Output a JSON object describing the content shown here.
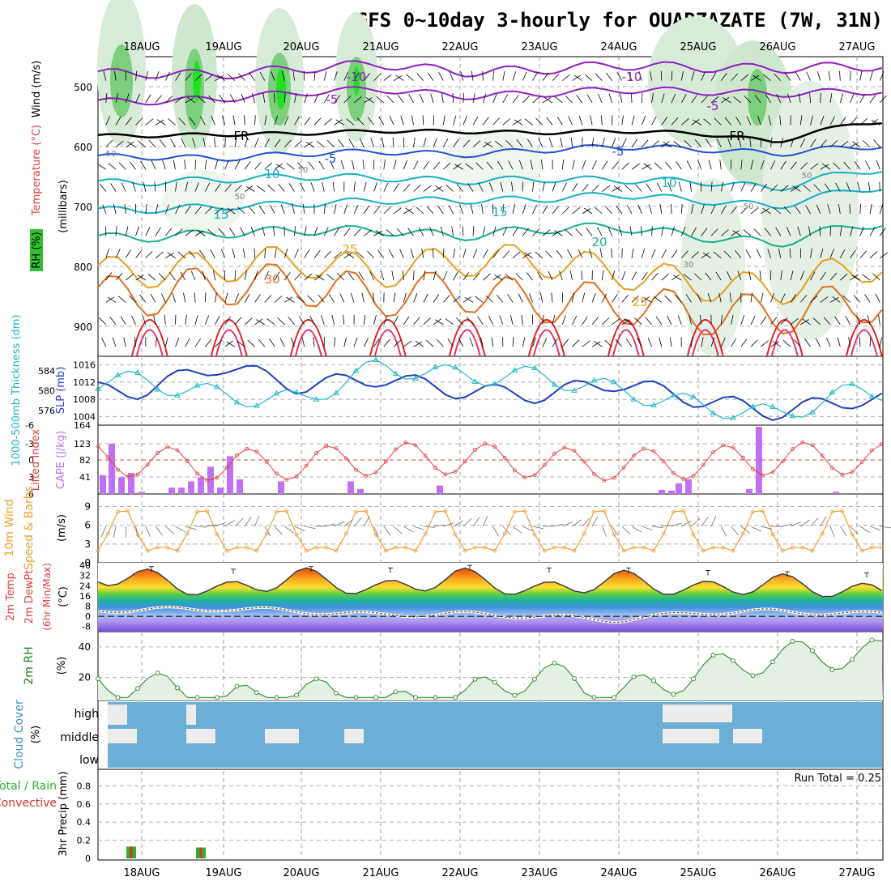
{
  "title": "GFS 0~10day 3-hourly for OUARZAZATE (7W, 31N)",
  "dates": [
    "18AUG",
    "19AUG",
    "20AUG",
    "21AUG",
    "22AUG",
    "23AUG",
    "24AUG",
    "25AUG",
    "26AUG",
    "27AUG"
  ],
  "colors": {
    "temperature_warm": "#e02020",
    "temperature_mid": "#e8a020",
    "temperature_cool": "#18b0c0",
    "temperature_cold": "#2050d0",
    "temperature_freeze": "#9020c0",
    "rh_green": "#22c022",
    "slp": "#2040c0",
    "thickness": "#20b8c8",
    "lifted_index": "#e04040",
    "cape": "#c070f0",
    "wind10m": "#f0a030",
    "rh2m": "#208020",
    "cloud": "#6baed6",
    "precip_total": "#30b030",
    "precip_conv": "#e03030"
  },
  "panels": {
    "upper": {
      "labels": {
        "rh": "RH (%)",
        "temperature": "Temperature (°C)",
        "wind": "Wind (m/s)",
        "pressure": "(millibars)"
      },
      "contour_labels": [
        "-10",
        "-10",
        "-5",
        "-5",
        "FR",
        "FR",
        "-5",
        "-5",
        "10",
        "10",
        "15",
        "15",
        "20",
        "25",
        "25",
        "30"
      ],
      "rh_labels": [
        "50",
        "50",
        "50",
        "50",
        "50",
        "30"
      ]
    },
    "slp": {
      "labels": {
        "thickness": "1000-500mb Thickness (dm)",
        "slp": "SLP (mb)"
      }
    },
    "cape": {
      "labels": {
        "li": "Lifted Index",
        "cape": "CAPE (J/kg)"
      }
    },
    "wind10m": {
      "labels": {
        "main": "10m Wind",
        "sub": "Speed & Barbs",
        "unit": "(m/s)"
      }
    },
    "temp2m": {
      "labels": {
        "a": "2m Temp",
        "b": "2m DewPt",
        "c": "(6hr Min/Max)",
        "unit": "(°C)"
      }
    },
    "rh2m": {
      "labels": {
        "main": "2m RH",
        "unit": "(%)"
      }
    },
    "cloud": {
      "labels": {
        "main": "Cloud Cover",
        "unit": "(%)"
      },
      "levels": [
        "high",
        "middle",
        "low"
      ]
    },
    "precip": {
      "labels": {
        "a": "Total / Rain",
        "b": "Convective",
        "c": "3hr Precip (mm)"
      },
      "run_total": "Run Total = 0.25"
    }
  },
  "chart_data": [
    {
      "type": "line",
      "title": "Temperature (°C) / Wind (m/s) / RH (%)",
      "ylabel": "millibars",
      "ylim": [
        950,
        450
      ],
      "yticks": [
        500,
        600,
        700,
        800,
        900
      ],
      "x": [
        "18AUG",
        "19AUG",
        "20AUG",
        "21AUG",
        "22AUG",
        "23AUG",
        "24AUG",
        "25AUG",
        "26AUG",
        "27AUG"
      ],
      "series": [
        {
          "name": "-10",
          "values": [
            478,
            480,
            470,
            462,
            476,
            472,
            464,
            468,
            470,
            466
          ]
        },
        {
          "name": "-5",
          "values": [
            525,
            520,
            510,
            504,
            516,
            512,
            505,
            508,
            512,
            508
          ]
        },
        {
          "name": "FR",
          "values": [
            582,
            580,
            578,
            574,
            575,
            577,
            574,
            578,
            592,
            560
          ]
        },
        {
          "name": "5",
          "values": [
            617,
            620,
            612,
            608,
            614,
            606,
            600,
            604,
            612,
            600
          ]
        },
        {
          "name": "10",
          "values": [
            660,
            655,
            650,
            652,
            658,
            654,
            656,
            658,
            670,
            640
          ]
        },
        {
          "name": "15",
          "values": [
            706,
            700,
            696,
            690,
            690,
            688,
            680,
            690,
            700,
            670
          ]
        },
        {
          "name": "20",
          "values": [
            752,
            745,
            740,
            740,
            750,
            738,
            734,
            750,
            762,
            730
          ]
        },
        {
          "name": "25",
          "values": [
            810,
            800,
            790,
            810,
            790,
            790,
            810,
            830,
            840,
            800
          ]
        },
        {
          "name": "30",
          "values": [
            850,
            830,
            830,
            850,
            840,
            860,
            860,
            880,
            880,
            860
          ]
        }
      ]
    },
    {
      "type": "line",
      "title": "SLP / Thickness",
      "ylim": [
        1003,
        1017
      ],
      "x": [
        "18AUG",
        "19AUG",
        "20AUG",
        "21AUG",
        "22AUG",
        "23AUG",
        "24AUG",
        "25AUG",
        "26AUG",
        "27AUG"
      ],
      "series": [
        {
          "name": "SLP (mb)",
          "values": [
            1010,
            1016,
            1011,
            1013,
            1010,
            1009,
            1012,
            1008,
            1005,
            1008
          ]
        },
        {
          "name": "Thickness (dm)",
          "values": [
            582,
            579,
            578,
            585,
            583,
            583,
            580,
            577,
            575,
            580
          ]
        }
      ]
    },
    {
      "type": "bar",
      "title": "CAPE (J/kg) / Lifted Index",
      "ylim": [
        0,
        164
      ],
      "x": [
        "17AUG12",
        "17AUG15",
        "17AUG18",
        "17AUG21",
        "18AUG00",
        "18AUG03",
        "18AUG06",
        "18AUG09",
        "18AUG12",
        "18AUG15",
        "18AUG18",
        "18AUG21",
        "19AUG00",
        "19AUG03",
        "20AUG15",
        "21AUG12",
        "21AUG15",
        "22AUG12",
        "24AUG21",
        "24AUG21b",
        "25AUG03",
        "25AUG06",
        "25AUG15",
        "25AUG18",
        "26AUG12"
      ],
      "values": [
        45,
        120,
        40,
        50,
        5,
        0,
        15,
        15,
        30,
        40,
        65,
        15,
        90,
        35,
        30,
        30,
        12,
        20,
        10,
        8,
        25,
        35,
        12,
        160,
        5
      ]
    },
    {
      "type": "line",
      "title": "10m Wind Speed",
      "ylabel": "m/s",
      "ylim": [
        0,
        10
      ],
      "x": [
        "18AUG",
        "19AUG",
        "20AUG",
        "21AUG",
        "22AUG",
        "23AUG",
        "24AUG",
        "25AUG",
        "26AUG",
        "27AUG"
      ],
      "series": [
        {
          "name": "10m Wind",
          "values": [
            0.5,
            1,
            1.5,
            3,
            2,
            1.5,
            2,
            3,
            2,
            2
          ]
        }
      ]
    },
    {
      "type": "line",
      "title": "2m Temp / DewPt",
      "ylabel": "°C",
      "ylim": [
        -12,
        42
      ],
      "x": [
        "18AUG",
        "19AUG",
        "20AUG",
        "21AUG",
        "22AUG",
        "23AUG",
        "24AUG",
        "25AUG",
        "26AUG",
        "27AUG"
      ],
      "series": [
        {
          "name": "2m Temp",
          "values": [
            36,
            24,
            37,
            25,
            37,
            24,
            35,
            25,
            32,
            24
          ]
        },
        {
          "name": "2m DewPt",
          "values": [
            5,
            6,
            4,
            1,
            2,
            0,
            -3,
            3,
            4,
            2
          ]
        }
      ]
    },
    {
      "type": "line",
      "title": "2m RH",
      "ylabel": "%",
      "ylim": [
        5,
        50
      ],
      "x": [
        "18AUG",
        "19AUG",
        "20AUG",
        "21AUG",
        "22AUG",
        "23AUG",
        "24AUG",
        "25AUG",
        "26AUG",
        "27AUG"
      ],
      "series": [
        {
          "name": "2m RH",
          "values": [
            28,
            15,
            24,
            12,
            18,
            35,
            20,
            35,
            46,
            47
          ]
        }
      ]
    },
    {
      "type": "bar",
      "title": "3hr Precip (mm)",
      "ylabel": "mm",
      "ylim": [
        0,
        1
      ],
      "x": [
        "17AUG18",
        "18AUG18"
      ],
      "values": [
        0.13,
        0.12
      ]
    }
  ]
}
